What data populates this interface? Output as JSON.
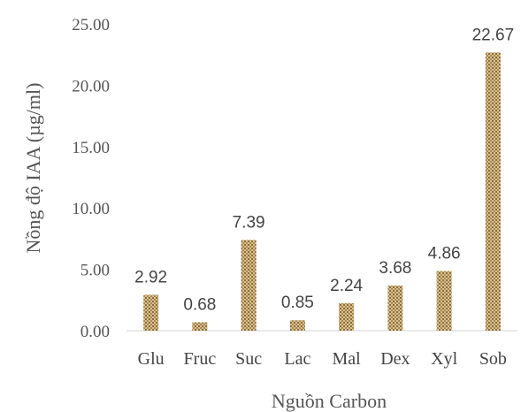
{
  "chart_data": {
    "type": "bar",
    "xlabel": "Nguồn Carbon",
    "ylabel": "Nồng độ IAA  (µg/ml)",
    "ylim": [
      0,
      25
    ],
    "yticks": [
      "0.00",
      "5.00",
      "10.00",
      "15.00",
      "20.00",
      "25.00"
    ],
    "categories": [
      "Glu",
      "Fruc",
      "Suc",
      "Lac",
      "Mal",
      "Dex",
      "Xyl",
      "Sob"
    ],
    "values": [
      2.92,
      0.68,
      7.39,
      0.85,
      2.24,
      3.68,
      4.86,
      22.67
    ],
    "data_labels": [
      "2.92",
      "0.68",
      "7.39",
      "0.85",
      "2.24",
      "3.68",
      "4.86",
      "22.67"
    ],
    "grid": false,
    "legend": "none",
    "colors": {
      "bar": "#c9a872",
      "bar_pattern": "#6b5530"
    }
  }
}
